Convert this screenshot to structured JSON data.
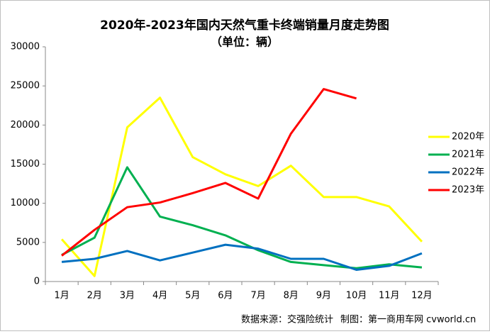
{
  "chart_data": {
    "type": "line",
    "title": "2020年-2023年国内天然气重卡终端销量月度走势图",
    "subtitle": "（单位：辆）",
    "categories": [
      "1月",
      "2月",
      "3月",
      "4月",
      "5月",
      "6月",
      "7月",
      "8月",
      "9月",
      "10月",
      "11月",
      "12月"
    ],
    "series": [
      {
        "name": "2020年",
        "color": "#ffff00",
        "values": [
          5400,
          700,
          19700,
          23500,
          15900,
          13700,
          12200,
          14800,
          10800,
          10800,
          9600,
          5100
        ]
      },
      {
        "name": "2021年",
        "color": "#00b050",
        "values": [
          3400,
          5600,
          14600,
          8300,
          7200,
          5900,
          4000,
          2500,
          2100,
          1700,
          2200,
          1800
        ]
      },
      {
        "name": "2022年",
        "color": "#0070c0",
        "values": [
          2500,
          2900,
          3900,
          2700,
          3700,
          4700,
          4200,
          2900,
          2900,
          1500,
          2000,
          3600
        ]
      },
      {
        "name": "2023年",
        "color": "#ff0000",
        "values": [
          3300,
          6600,
          9500,
          10100,
          11300,
          12600,
          10600,
          18900,
          24600,
          23400,
          null,
          null
        ]
      }
    ],
    "ylim": [
      0,
      30000
    ],
    "yticks": [
      0,
      5000,
      10000,
      15000,
      20000,
      25000,
      30000
    ],
    "legend": "right",
    "source": "数据来源：交强险统计",
    "credit": "制图：第一商用车网 cvworld.cn"
  }
}
